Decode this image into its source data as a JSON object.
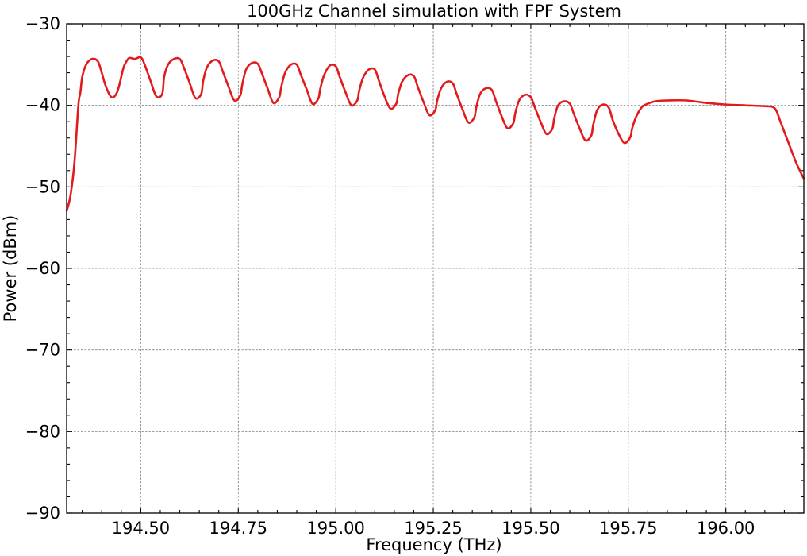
{
  "chart_data": {
    "type": "line",
    "title": "100GHz Channel simulation with FPF System",
    "xlabel": "Frequency (THz)",
    "ylabel": "Power (dBm)",
    "xlim": [
      194.31,
      196.2
    ],
    "ylim": [
      -90,
      -30
    ],
    "xticks": [
      194.5,
      194.75,
      195.0,
      195.25,
      195.5,
      195.75,
      196.0
    ],
    "xtick_labels": [
      "194.50",
      "194.75",
      "195.00",
      "195.25",
      "195.50",
      "195.75",
      "196.00"
    ],
    "yticks": [
      -90,
      -80,
      -70,
      -60,
      -50,
      -40,
      -30
    ],
    "ytick_labels": [
      "−90",
      "−80",
      "−70",
      "−60",
      "−50",
      "−40",
      "−30"
    ],
    "grid": true,
    "line_color": "#e31a1c",
    "series": [
      {
        "x": [
          194.31,
          194.32,
          194.33,
          194.34,
          194.345,
          194.35,
          194.36,
          194.375,
          194.39,
          194.4,
          194.41,
          194.425,
          194.44,
          194.455,
          194.46,
          194.47,
          194.485,
          194.5,
          194.51,
          194.525,
          194.54,
          194.555,
          194.56,
          194.57,
          194.585,
          194.6,
          194.61,
          194.625,
          194.64,
          194.655,
          194.66,
          194.67,
          194.685,
          194.7,
          194.71,
          194.725,
          194.74,
          194.755,
          194.76,
          194.77,
          194.785,
          194.8,
          194.81,
          194.825,
          194.84,
          194.855,
          194.86,
          194.87,
          194.885,
          194.9,
          194.91,
          194.925,
          194.94,
          194.955,
          194.96,
          194.97,
          194.985,
          195.0,
          195.01,
          195.025,
          195.04,
          195.055,
          195.06,
          195.07,
          195.085,
          195.1,
          195.11,
          195.125,
          195.14,
          195.155,
          195.16,
          195.17,
          195.185,
          195.2,
          195.21,
          195.225,
          195.24,
          195.255,
          195.26,
          195.27,
          195.285,
          195.3,
          195.31,
          195.325,
          195.34,
          195.355,
          195.36,
          195.37,
          195.385,
          195.4,
          195.41,
          195.425,
          195.44,
          195.455,
          195.46,
          195.47,
          195.485,
          195.5,
          195.51,
          195.525,
          195.54,
          195.555,
          195.56,
          195.57,
          195.585,
          195.6,
          195.61,
          195.625,
          195.64,
          195.655,
          195.66,
          195.67,
          195.685,
          195.7,
          195.71,
          195.725,
          195.74,
          195.755,
          195.76,
          195.77,
          195.785,
          195.8,
          195.82,
          195.85,
          195.9,
          195.95,
          196.0,
          196.05,
          196.1,
          196.12,
          196.13,
          196.14,
          196.16,
          196.18,
          196.2
        ],
        "y": [
          -53,
          -51,
          -47,
          -40,
          -38.5,
          -36.5,
          -35,
          -34.3,
          -34.6,
          -36,
          -37.6,
          -39,
          -38.3,
          -35.5,
          -34.9,
          -34.2,
          -34.3,
          -34.1,
          -35,
          -37,
          -38.9,
          -38.6,
          -36.5,
          -35,
          -34.3,
          -34.3,
          -35.3,
          -37.2,
          -39.1,
          -38.6,
          -37,
          -35.3,
          -34.5,
          -34.6,
          -35.8,
          -37.7,
          -39.4,
          -38.8,
          -37.5,
          -35.6,
          -34.8,
          -34.9,
          -36,
          -37.9,
          -39.7,
          -39,
          -37.8,
          -36,
          -35,
          -35,
          -36.2,
          -38,
          -39.8,
          -39.2,
          -38,
          -36.3,
          -35.1,
          -35.2,
          -36.5,
          -38.4,
          -40,
          -39.4,
          -38.2,
          -36.6,
          -35.6,
          -35.6,
          -36.9,
          -38.9,
          -40.4,
          -39.8,
          -38.6,
          -37.1,
          -36.3,
          -36.4,
          -37.7,
          -39.6,
          -41.2,
          -40.6,
          -39.4,
          -37.9,
          -37.1,
          -37.3,
          -38.6,
          -40.5,
          -42.1,
          -41.5,
          -40.3,
          -38.6,
          -37.9,
          -38.1,
          -39.4,
          -41.3,
          -42.8,
          -42.2,
          -41,
          -39.4,
          -38.7,
          -39,
          -40.2,
          -42,
          -43.5,
          -42.9,
          -41.6,
          -40,
          -39.5,
          -39.8,
          -41,
          -42.8,
          -44.3,
          -43.7,
          -42.4,
          -40.6,
          -39.9,
          -40.3,
          -41.8,
          -43.5,
          -44.6,
          -43.9,
          -42.8,
          -41.4,
          -40.2,
          -39.8,
          -39.5,
          -39.4,
          -39.4,
          -39.7,
          -39.9,
          -40,
          -40.1,
          -40.2,
          -40.7,
          -42,
          -44.5,
          -47,
          -49
        ]
      }
    ]
  }
}
